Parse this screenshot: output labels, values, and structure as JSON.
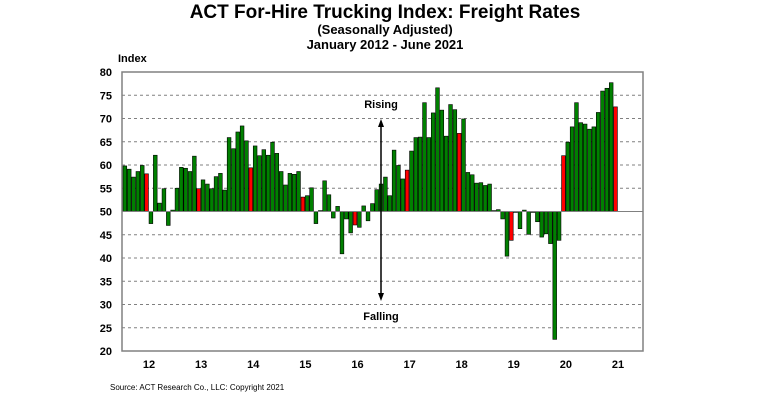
{
  "chart_data": {
    "type": "bar",
    "title": "ACT For-Hire Trucking Index: Freight Rates",
    "subtitle": "(Seasonally Adjusted)",
    "subtitle2": "January 2012 - June 2021",
    "ylabel": "Index",
    "xlabel": "",
    "ylim": [
      20,
      80
    ],
    "yticks": [
      20,
      25,
      30,
      35,
      40,
      45,
      50,
      55,
      60,
      65,
      70,
      75,
      80
    ],
    "baseline": 50,
    "grid": true,
    "x_tick_labels": [
      "12",
      "13",
      "14",
      "15",
      "16",
      "17",
      "18",
      "19",
      "20",
      "21"
    ],
    "annotations": {
      "rising": "Rising",
      "falling": "Falling"
    },
    "colors": {
      "normal": "#008000",
      "june": "#ff0000",
      "outline": "#000000"
    },
    "start": "2012-01",
    "end": "2021-06",
    "highlighted_month": "June",
    "values": [
      59.8,
      59.1,
      57.4,
      58.6,
      59.9,
      58.1,
      47.4,
      62.1,
      51.8,
      54.9,
      47.0,
      50.3,
      55.0,
      59.5,
      59.3,
      58.6,
      61.9,
      54.9,
      56.8,
      55.9,
      54.9,
      57.5,
      58.2,
      54.6,
      65.9,
      63.5,
      67.1,
      68.4,
      65.2,
      59.4,
      64.1,
      62.0,
      63.3,
      62.1,
      64.9,
      62.5,
      58.6,
      55.7,
      58.2,
      58.0,
      58.6,
      53.1,
      53.4,
      55.1,
      47.4,
      50.2,
      56.6,
      53.6,
      48.6,
      51.1,
      40.9,
      48.4,
      45.4,
      47.1,
      46.6,
      51.2,
      48.0,
      51.7,
      54.7,
      55.9,
      57.4,
      53.4,
      63.2,
      59.9,
      57.0,
      58.9,
      63.0,
      65.9,
      66.0,
      73.4,
      65.9,
      71.2,
      76.6,
      71.8,
      66.2,
      73.0,
      71.9,
      66.8,
      69.9,
      58.4,
      57.9,
      56.1,
      56.2,
      55.6,
      55.9,
      50.2,
      50.4,
      48.4,
      40.4,
      43.8,
      49.8,
      46.3,
      50.3,
      45.1,
      49.8,
      47.8,
      44.5,
      45.2,
      43.1,
      22.5,
      43.8,
      62.0,
      64.9,
      68.2,
      73.4,
      69.1,
      68.8,
      67.7,
      68.2,
      71.3,
      75.9,
      76.5,
      77.7,
      72.5
    ]
  },
  "source": "Source:  ACT Research Co., LLC: Copyright 2021"
}
